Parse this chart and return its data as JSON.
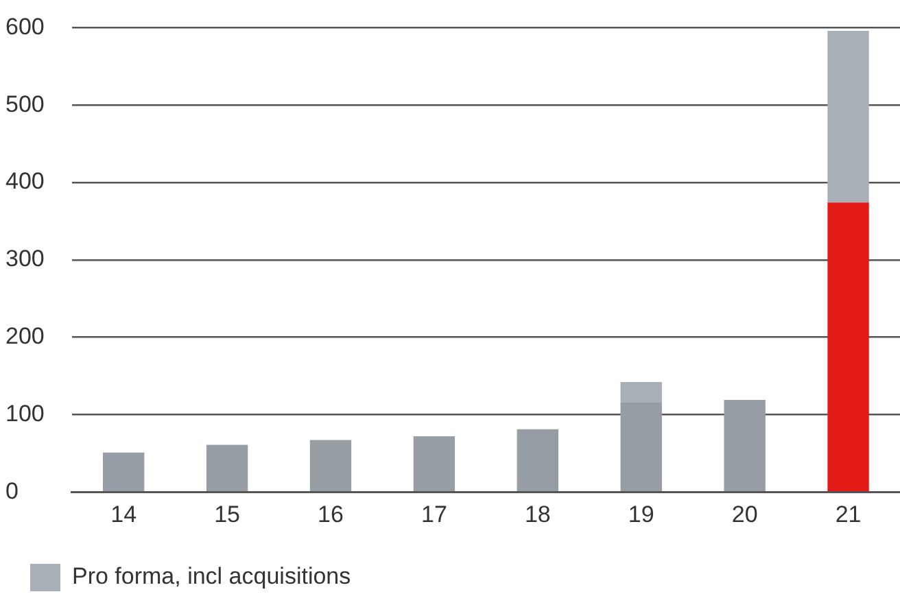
{
  "chart_data": {
    "type": "bar",
    "stacked": true,
    "categories": [
      "14",
      "15",
      "16",
      "17",
      "18",
      "19",
      "20",
      "21"
    ],
    "series": [
      {
        "colors": [
          "#969da5",
          "#969da5",
          "#969da5",
          "#969da5",
          "#969da5",
          "#969da5",
          "#969da5",
          "#e31b17"
        ],
        "values": [
          51,
          61,
          67,
          72,
          81,
          116,
          119,
          374
        ]
      },
      {
        "name": "Pro forma, incl acquisitions",
        "color": "#a9afb6",
        "values": [
          null,
          null,
          null,
          null,
          null,
          26,
          null,
          222
        ]
      }
    ],
    "ylim": [
      0,
      600
    ],
    "yticks": [
      0,
      100,
      200,
      300,
      400,
      500,
      600
    ],
    "grid": "y",
    "legend": "bottom left"
  }
}
